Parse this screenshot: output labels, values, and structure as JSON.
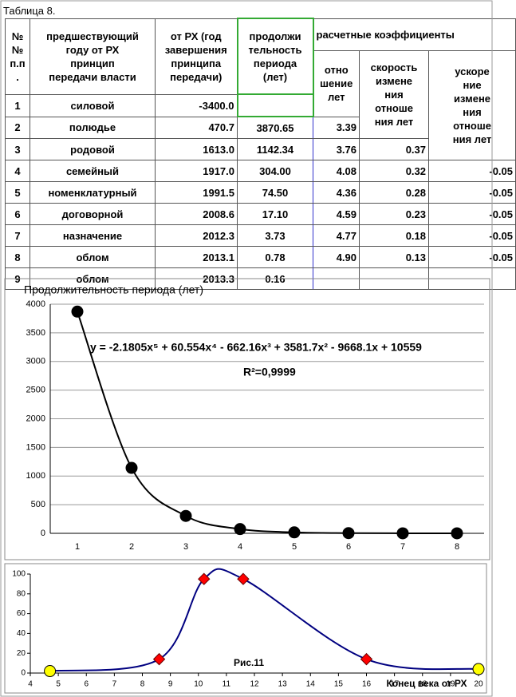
{
  "caption": "Таблица 8.",
  "table": {
    "headers": [
      "№\n№\nп.п\n.",
      "предшествующий\nгоду от РХ\nпринцип\nпередачи власти",
      "от РХ (год\nзавершения\nпринципа\nпередачи)",
      "продолжи\nтельность\nпериода\n(лет)",
      "расчетные коэффициенты"
    ],
    "subheaders": [
      "отно\nшение\nлет",
      "скорость\nизмене\nния\nотноше\nния лет",
      "ускоре\nние\nизмене\nния\nотноше\nния лет"
    ],
    "rows": [
      {
        "n": "1",
        "name": "силовой",
        "year": "-3400.0"
      },
      {
        "n": "2",
        "name": "полюдье",
        "year": "470.7",
        "dur": "3870.65",
        "ratio": "3.39"
      },
      {
        "n": "3",
        "name": "родовой",
        "year": "1613.0",
        "dur": "1142.34",
        "ratio": "3.76",
        "speed": "0.37"
      },
      {
        "n": "4",
        "name": "семейный",
        "year": "1917.0",
        "dur": "304.00",
        "ratio": "4.08",
        "speed": "0.32",
        "acc": "-0.05"
      },
      {
        "n": "5",
        "name": "номенклатурный",
        "year": "1991.5",
        "dur": "74.50",
        "ratio": "4.36",
        "speed": "0.28",
        "acc": "-0.05"
      },
      {
        "n": "6",
        "name": "договорной",
        "year": "2008.6",
        "dur": "17.10",
        "ratio": "4.59",
        "speed": "0.23",
        "acc": "-0.05"
      },
      {
        "n": "7",
        "name": "назначение",
        "year": "2012.3",
        "dur": "3.73",
        "ratio": "4.77",
        "speed": "0.18",
        "acc": "-0.05"
      },
      {
        "n": "8",
        "name": "облом",
        "year": "2013.1",
        "dur": "0.78",
        "ratio": "4.90",
        "speed": "0.13",
        "acc": "-0.05"
      },
      {
        "n": "9",
        "name": "облом",
        "year": "2013.3",
        "dur": "0.16"
      }
    ]
  },
  "chart_data": [
    {
      "type": "line",
      "title": "Продолжительность периода   (лет)",
      "equation": "y = -2.1805x⁵ + 60.554x⁴ - 662.16x³ + 3581.7x² - 9668.1x + 10559",
      "r2": "R²=0,9999",
      "categories": [
        "1",
        "2",
        "3",
        "4",
        "5",
        "6",
        "7",
        "8"
      ],
      "values": [
        3870.65,
        1142.34,
        304,
        74.5,
        17.1,
        3.73,
        0.78,
        0.16
      ],
      "color": "#000000",
      "marker_color": "#000000",
      "ylim": [
        0,
        4000
      ],
      "yticks": [
        0,
        500,
        1000,
        1500,
        2000,
        2500,
        3000,
        3500,
        4000
      ],
      "grid": true
    },
    {
      "type": "line",
      "annotation": "Рис.11",
      "xlabel": "Конец века от РХ",
      "x": [
        4.7,
        8.6,
        10.2,
        11.6,
        16,
        20
      ],
      "values": [
        2,
        14,
        95,
        95,
        14,
        4
      ],
      "markers": [
        "circle",
        "diamond",
        "diamond",
        "diamond",
        "diamond",
        "circle"
      ],
      "marker_colors": [
        "#ffff00",
        "#ff0000",
        "#ff0000",
        "#ff0000",
        "#ff0000",
        "#ffff00"
      ],
      "color": "#000080",
      "xlim": [
        4,
        20
      ],
      "xticks": [
        4,
        5,
        6,
        7,
        8,
        9,
        10,
        11,
        12,
        13,
        14,
        15,
        16,
        17,
        18,
        19,
        20
      ],
      "ylim": [
        0,
        100
      ],
      "yticks": [
        0,
        20,
        40,
        60,
        80,
        100
      ],
      "grid": false
    }
  ]
}
